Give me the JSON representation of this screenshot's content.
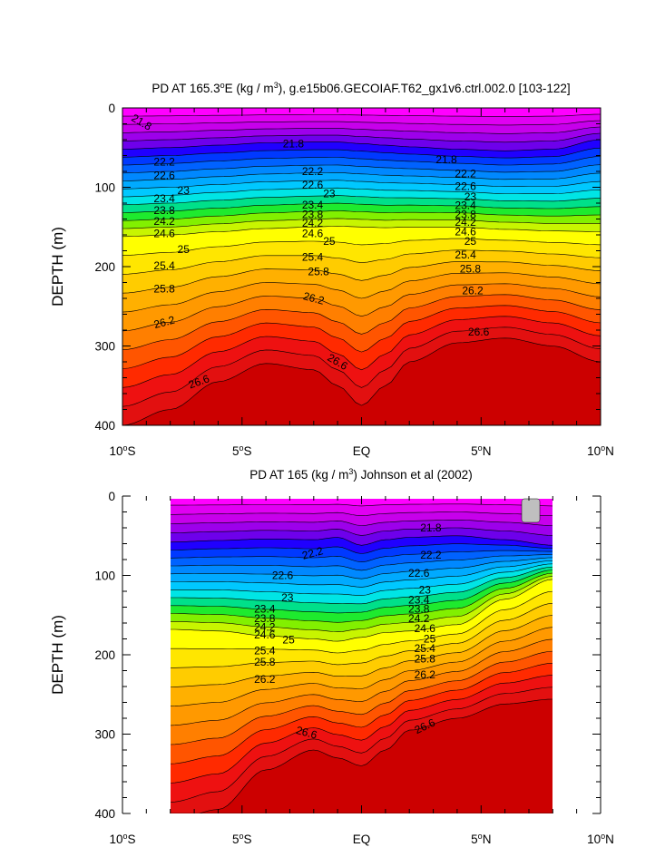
{
  "chart_data": [
    {
      "type": "heatmap",
      "subtype": "filled-contour",
      "title_prefix": "PD AT 165.3",
      "title_sup": "o",
      "title_mid": "E (kg / m",
      "title_sup2": "3",
      "title_suffix": "), g.e15b06.GECOIAF.T62_gx1v6.ctrl.002.0 [103-122]",
      "ylabel": "DEPTH (m)",
      "xlim": [
        -10,
        10
      ],
      "ylim": [
        0,
        400
      ],
      "y_inverted": true,
      "data_xrange": [
        -10,
        10
      ],
      "xticks": [
        {
          "value": -10,
          "num": "10",
          "sup": "o",
          "hem": "S"
        },
        {
          "value": -5,
          "num": "5",
          "sup": "o",
          "hem": "S"
        },
        {
          "value": 0,
          "num": "EQ",
          "sup": "",
          "hem": ""
        },
        {
          "value": 5,
          "num": "5",
          "sup": "o",
          "hem": "N"
        },
        {
          "value": 10,
          "num": "10",
          "sup": "o",
          "hem": "N"
        }
      ],
      "yticks": [
        0,
        100,
        200,
        300,
        400
      ],
      "contour_levels_start": 21.8,
      "contour_interval": 0.2,
      "contour_labels": [
        {
          "text": "21.8",
          "x": -9.2,
          "y": 18,
          "angle": 30
        },
        {
          "text": "21.8",
          "x": -2.85,
          "y": 45
        },
        {
          "text": "21.8",
          "x": 3.55,
          "y": 65
        },
        {
          "text": "22.2",
          "x": -8.25,
          "y": 68
        },
        {
          "text": "22.2",
          "x": -2.05,
          "y": 80
        },
        {
          "text": "22.2",
          "x": 4.35,
          "y": 83
        },
        {
          "text": "22.6",
          "x": -8.25,
          "y": 85
        },
        {
          "text": "22.6",
          "x": -2.05,
          "y": 97
        },
        {
          "text": "22.6",
          "x": 4.35,
          "y": 99
        },
        {
          "text": "23",
          "x": -7.45,
          "y": 104
        },
        {
          "text": "23",
          "x": -1.35,
          "y": 108
        },
        {
          "text": "23",
          "x": 4.55,
          "y": 112
        },
        {
          "text": "23.4",
          "x": -8.25,
          "y": 114
        },
        {
          "text": "23.4",
          "x": -2.05,
          "y": 122
        },
        {
          "text": "23.4",
          "x": 4.35,
          "y": 123
        },
        {
          "text": "23.8",
          "x": -8.25,
          "y": 129
        },
        {
          "text": "23.8",
          "x": -2.05,
          "y": 134
        },
        {
          "text": "23.8",
          "x": 4.35,
          "y": 134
        },
        {
          "text": "24.2",
          "x": -8.25,
          "y": 143
        },
        {
          "text": "24.2",
          "x": -2.05,
          "y": 145
        },
        {
          "text": "24.2",
          "x": 4.35,
          "y": 144
        },
        {
          "text": "24.6",
          "x": -8.25,
          "y": 158
        },
        {
          "text": "24.6",
          "x": -2.05,
          "y": 158
        },
        {
          "text": "24.6",
          "x": 4.35,
          "y": 156
        },
        {
          "text": "25",
          "x": -7.45,
          "y": 178
        },
        {
          "text": "25",
          "x": -1.35,
          "y": 168
        },
        {
          "text": "25",
          "x": 4.55,
          "y": 168
        },
        {
          "text": "25.4",
          "x": -8.25,
          "y": 199
        },
        {
          "text": "25.4",
          "x": -2.05,
          "y": 188
        },
        {
          "text": "25.4",
          "x": 4.35,
          "y": 185
        },
        {
          "text": "25.8",
          "x": -8.25,
          "y": 228
        },
        {
          "text": "25.8",
          "x": -1.8,
          "y": 206
        },
        {
          "text": "25.8",
          "x": 4.55,
          "y": 203
        },
        {
          "text": "26.2",
          "x": -8.25,
          "y": 270,
          "angle": -15
        },
        {
          "text": "26.2",
          "x": -2.0,
          "y": 240,
          "angle": 15
        },
        {
          "text": "26.2",
          "x": 4.65,
          "y": 230
        },
        {
          "text": "26.6",
          "x": -6.8,
          "y": 345,
          "angle": -20
        },
        {
          "text": "26.6",
          "x": -1.0,
          "y": 320,
          "angle": 30
        },
        {
          "text": "26.6",
          "x": 4.9,
          "y": 282
        }
      ]
    },
    {
      "type": "heatmap",
      "subtype": "filled-contour",
      "title_prefix": "PD AT 165 (kg / m",
      "title_sup": "3",
      "title_suffix": ") Johnson et al (2002)",
      "ylabel": "DEPTH (m)",
      "xlim": [
        -10,
        10
      ],
      "ylim": [
        0,
        400
      ],
      "y_inverted": true,
      "data_xrange": [
        -8,
        8
      ],
      "xticks": [
        {
          "value": -10,
          "num": "10",
          "sup": "o",
          "hem": "S"
        },
        {
          "value": -5,
          "num": "5",
          "sup": "o",
          "hem": "S"
        },
        {
          "value": 0,
          "num": "EQ",
          "sup": "",
          "hem": ""
        },
        {
          "value": 5,
          "num": "5",
          "sup": "o",
          "hem": "N"
        },
        {
          "value": 10,
          "num": "10",
          "sup": "o",
          "hem": "N"
        }
      ],
      "yticks": [
        0,
        100,
        200,
        300,
        400
      ],
      "contour_levels_start": 21.8,
      "contour_interval": 0.2,
      "missing_data_color": "#bfbfbf",
      "contour_labels": [
        {
          "text": "21.8",
          "x": 2.9,
          "y": 40
        },
        {
          "text": "22.2",
          "x": -2.05,
          "y": 72,
          "angle": -15
        },
        {
          "text": "22.2",
          "x": 2.9,
          "y": 74
        },
        {
          "text": "22.6",
          "x": -3.3,
          "y": 100
        },
        {
          "text": "22.6",
          "x": 2.4,
          "y": 97
        },
        {
          "text": "23",
          "x": -3.1,
          "y": 128
        },
        {
          "text": "23",
          "x": 2.65,
          "y": 118
        },
        {
          "text": "23.4",
          "x": -4.05,
          "y": 142
        },
        {
          "text": "23.4",
          "x": 2.4,
          "y": 131
        },
        {
          "text": "23.8",
          "x": -4.05,
          "y": 154
        },
        {
          "text": "23.8",
          "x": 2.4,
          "y": 142
        },
        {
          "text": "24.2",
          "x": -4.05,
          "y": 165
        },
        {
          "text": "24.2",
          "x": 2.4,
          "y": 154
        },
        {
          "text": "24.6",
          "x": -4.05,
          "y": 175
        },
        {
          "text": "24.6",
          "x": 2.65,
          "y": 167
        },
        {
          "text": "25",
          "x": -3.05,
          "y": 181
        },
        {
          "text": "25",
          "x": 2.85,
          "y": 180
        },
        {
          "text": "25.4",
          "x": -4.05,
          "y": 195
        },
        {
          "text": "25.4",
          "x": 2.65,
          "y": 192
        },
        {
          "text": "25.8",
          "x": -4.05,
          "y": 209
        },
        {
          "text": "25.8",
          "x": 2.65,
          "y": 205
        },
        {
          "text": "26.2",
          "x": -4.05,
          "y": 231
        },
        {
          "text": "26.2",
          "x": 2.65,
          "y": 225
        },
        {
          "text": "26.6",
          "x": -2.3,
          "y": 298,
          "angle": 15
        },
        {
          "text": "26.6",
          "x": 2.65,
          "y": 290,
          "angle": -25
        }
      ]
    }
  ],
  "colors": {
    "palette": [
      "#ff00ff",
      "#e000f2",
      "#c700eb",
      "#9d00eb",
      "#6e00eb",
      "#2000ff",
      "#0039ff",
      "#0062ff",
      "#0088ff",
      "#00aaff",
      "#00c8ff",
      "#00e5e5",
      "#00e08a",
      "#1eea2e",
      "#82f000",
      "#c8f500",
      "#ffff00",
      "#ffe600",
      "#ffcc00",
      "#ffb000",
      "#ff9900",
      "#ff7f00",
      "#ff5500",
      "#ff2a00",
      "#ee1111",
      "#e21010",
      "#cc0000",
      "#b20000"
    ],
    "line": "#000000",
    "background": "#ffffff"
  }
}
